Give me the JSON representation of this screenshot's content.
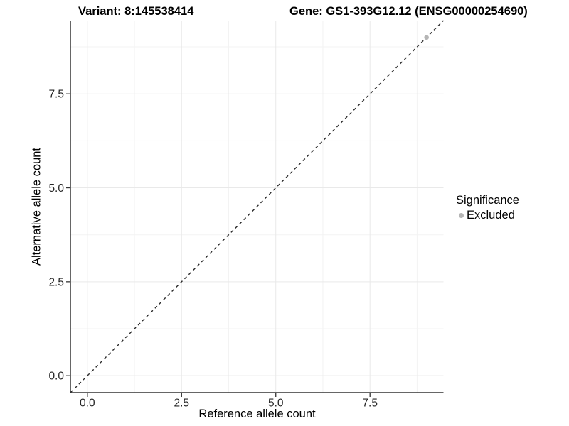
{
  "titles": {
    "variant": "Variant: 8:145538414",
    "gene": "Gene: GS1-393G12.12 (ENSG00000254690)"
  },
  "chart_data": {
    "type": "scatter",
    "xlabel": "Reference allele count",
    "ylabel": "Alternative allele count",
    "xlim": [
      -0.45,
      9.45
    ],
    "ylim": [
      -0.45,
      9.45
    ],
    "xticks": {
      "values": [
        0,
        2.5,
        5,
        7.5
      ],
      "labels": [
        "0.0",
        "2.5",
        "5.0",
        "7.5"
      ]
    },
    "yticks": {
      "values": [
        0,
        2.5,
        5,
        7.5
      ],
      "labels": [
        "0.0",
        "2.5",
        "5.0",
        "7.5"
      ]
    },
    "minor_xticks": [
      1.25,
      3.75,
      6.25,
      8.75
    ],
    "minor_yticks": [
      1.25,
      3.75,
      6.25,
      8.75
    ],
    "grid": true,
    "series": [
      {
        "name": "Excluded",
        "color": "#b5b5b5",
        "points": [
          {
            "x": 9,
            "y": 9
          }
        ]
      }
    ],
    "identity_line": {
      "from": [
        -0.45,
        -0.45
      ],
      "to": [
        9.45,
        9.45
      ],
      "style": "dashed",
      "color": "#2b2b2b"
    },
    "legend": {
      "title": "Significance",
      "position": "right",
      "items": [
        {
          "label": "Excluded",
          "color": "#b5b5b5"
        }
      ]
    }
  },
  "colors": {
    "background": "#ffffff",
    "grid_major": "#e9e9e9",
    "grid_minor": "#f3f3f3",
    "axis_line": "#333333",
    "tick_mark": "#333333",
    "tick_label": "#262626",
    "title": "#000000"
  }
}
